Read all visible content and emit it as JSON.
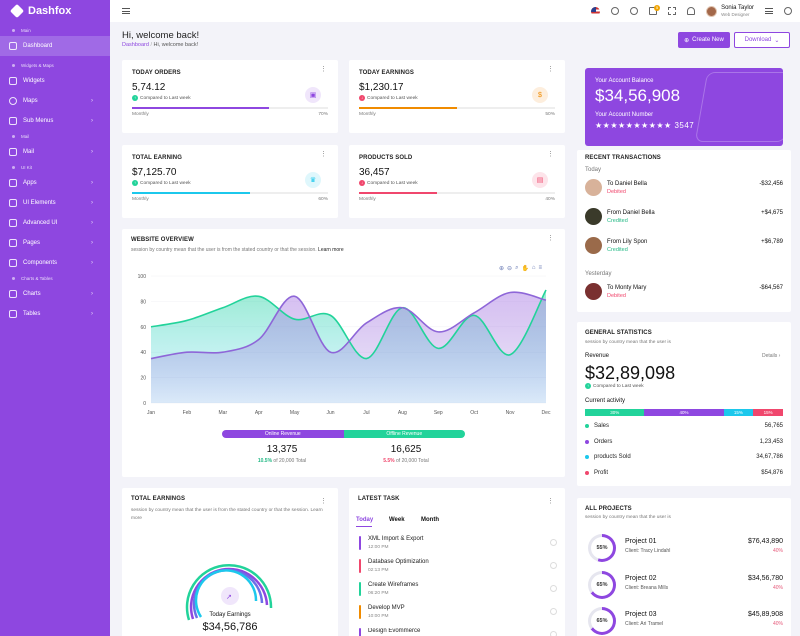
{
  "brand": {
    "name": "Dashfox"
  },
  "sidebar": {
    "sections": {
      "main": "Main",
      "widgets": "Widgets & Maps",
      "mail": "Mail",
      "uikit": "UI Kit",
      "charts": "Charts & Tables"
    },
    "items": [
      {
        "label": "Dashboard",
        "icon": "grid-icon"
      },
      {
        "label": "Widgets",
        "icon": "widgets-icon"
      },
      {
        "label": "Maps",
        "icon": "map-pin-icon"
      },
      {
        "label": "Sub Menus",
        "icon": "layers-icon"
      },
      {
        "label": "Mail",
        "icon": "mail-icon"
      },
      {
        "label": "Apps",
        "icon": "apps-icon"
      },
      {
        "label": "UI Elements",
        "icon": "elements-icon"
      },
      {
        "label": "Advanced UI",
        "icon": "advanced-icon"
      },
      {
        "label": "Pages",
        "icon": "pages-icon"
      },
      {
        "label": "Components",
        "icon": "components-icon"
      },
      {
        "label": "Charts",
        "icon": "chart-icon"
      },
      {
        "label": "Tables",
        "icon": "table-icon"
      }
    ]
  },
  "header": {
    "user_name": "Sonia Taylor",
    "user_role": "Web Designer",
    "cart_badge": "5"
  },
  "page": {
    "title": "Hi, welcome back!",
    "crumb_root": "Dashboard",
    "crumb_current": "Hi, welcome back!",
    "btn_new": "Create New",
    "btn_download": "Download"
  },
  "stats": [
    {
      "title": "TODAY ORDERS",
      "value": "5,74.12",
      "compare": "Compared to Last week",
      "foot": "Monthly",
      "pct": "70%",
      "fill": 0.7,
      "color": "#8e47e0",
      "icon": "shopping-bag-icon",
      "trend": "up"
    },
    {
      "title": "TODAY EARNINGS",
      "value": "$1,230.17",
      "compare": "Compared to Last week",
      "foot": "Monthly",
      "pct": "50%",
      "fill": 0.5,
      "color": "#f08b00",
      "icon": "dollar-icon",
      "trend": "down"
    },
    {
      "title": "TOTAL EARNING",
      "value": "$7,125.70",
      "compare": "Compared to Last week",
      "foot": "Monthly",
      "pct": "60%",
      "fill": 0.6,
      "color": "#1cc8ec",
      "icon": "trophy-icon",
      "trend": "up"
    },
    {
      "title": "PRODUCTS SOLD",
      "value": "36,457",
      "compare": "Compared to Last week",
      "foot": "Monthly",
      "pct": "40%",
      "fill": 0.4,
      "color": "#f0476d",
      "icon": "box-icon",
      "trend": "down"
    }
  ],
  "account": {
    "balance_label": "Your Account Balance",
    "balance": "$34,56,908",
    "number_label": "Your Account Number",
    "number": "★★★★★★★★★★ 3547"
  },
  "transactions": {
    "title": "RECENT TRANSACTIONS",
    "today": "Today",
    "yesterday": "Yesterday",
    "rows": [
      {
        "name": "To Daniel Bella",
        "status": "Debited",
        "amount": "-$32,456"
      },
      {
        "name": "From Daniel Bella",
        "status": "Credited",
        "amount": "+$4,675"
      },
      {
        "name": "From Lily Spon",
        "status": "Credited",
        "amount": "+$6,789"
      },
      {
        "name": "To Monty Mary",
        "status": "Debited",
        "amount": "-$64,567"
      }
    ]
  },
  "overview": {
    "title": "WEBSITE OVERVIEW",
    "subtitle": "session by country mean that the user is from the stated country or that the session.",
    "learn_more": "Learn more",
    "online_label": "Online Revenue",
    "offline_label": "Offline Revenue",
    "online_value": "13,375",
    "offline_value": "16,625",
    "online_pct": "10.5%",
    "offline_pct": "5.5%",
    "of_total": "of 20,000 Total"
  },
  "chart_data": {
    "type": "area",
    "categories": [
      "Jan",
      "Feb",
      "Mar",
      "Apr",
      "May",
      "Jun",
      "Jul",
      "Aug",
      "Sep",
      "Oct",
      "Nov",
      "Dec"
    ],
    "yticks": [
      "0",
      "20",
      "40",
      "60",
      "80",
      "100"
    ],
    "ylim": [
      0,
      100
    ],
    "series": [
      {
        "values": [
          60,
          65,
          75,
          84,
          66,
          69,
          35,
          75,
          43,
          69,
          38,
          89
        ],
        "color": "#22d39a"
      },
      {
        "values": [
          35,
          40,
          40,
          50,
          84,
          40,
          63,
          75,
          56,
          71,
          87,
          81
        ],
        "color": "#8e66d8"
      }
    ]
  },
  "total_earnings": {
    "title": "TOTAL EARNINGS",
    "subtitle": "session by country mean that the user is from the stated country or that the session.",
    "learn_more": "Learn more",
    "label": "Today Earnings",
    "value": "$34,56,786"
  },
  "tasks": {
    "title": "LATEST TASK",
    "tabs": [
      "Today",
      "Week",
      "Month"
    ],
    "items": [
      {
        "name": "XML Import & Export",
        "time": "12:00 PM",
        "color": "#8e47e0"
      },
      {
        "name": "Database Optimization",
        "time": "02:13 PM",
        "color": "#f0476d"
      },
      {
        "name": "Create Wireframes",
        "time": "06:20 PM",
        "color": "#22d39a"
      },
      {
        "name": "Develop MVP",
        "time": "10:00 PM",
        "color": "#f08b00"
      },
      {
        "name": "Design Evommerce",
        "time": "",
        "color": "#8e47e0"
      }
    ]
  },
  "general": {
    "title": "GENERAL STATISTICS",
    "subtitle": "session by country mean that the user is",
    "details": "Details",
    "revenue_label": "Revenue",
    "revenue": "$32,89,098",
    "compare": "Compared to Last week",
    "activity_label": "Current activity",
    "segments": [
      {
        "label": "30%",
        "share": 0.3,
        "color": "#22d39a"
      },
      {
        "label": "40%",
        "share": 0.4,
        "color": "#8e47e0"
      },
      {
        "label": "15%",
        "share": 0.15,
        "color": "#1cc8ec"
      },
      {
        "label": "15%",
        "share": 0.15,
        "color": "#f0476d"
      }
    ],
    "rows": [
      {
        "label": "Sales",
        "value": "56,765",
        "color": "#22d39a"
      },
      {
        "label": "Orders",
        "value": "1,23,453",
        "color": "#8e47e0"
      },
      {
        "label": "products Sold",
        "value": "34,67,786",
        "color": "#1cc8ec"
      },
      {
        "label": "Profit",
        "value": "$54,876",
        "color": "#f0476d"
      }
    ]
  },
  "projects": {
    "title": "ALL PROJECTS",
    "subtitle": "session by country mean that the user is",
    "items": [
      {
        "name": "Project 01",
        "client": "Client: Tracy Lindahl",
        "amount": "$76,43,890",
        "pct": "40%",
        "progress": "55%",
        "fill": 0.55
      },
      {
        "name": "Project 02",
        "client": "Client: Breana Mills",
        "amount": "$34,56,780",
        "pct": "40%",
        "progress": "65%",
        "fill": 0.65
      },
      {
        "name": "Project 03",
        "client": "Client: Ari Tramel",
        "amount": "$45,89,908",
        "pct": "40%",
        "progress": "65%",
        "fill": 0.65
      }
    ]
  }
}
